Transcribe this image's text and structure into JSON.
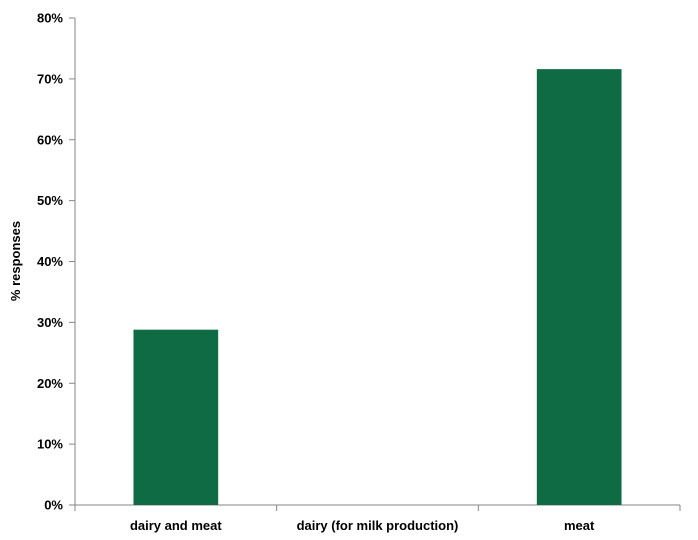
{
  "chart_data": {
    "type": "bar",
    "categories": [
      "dairy and meat",
      "dairy (for milk production)",
      "meat"
    ],
    "values": [
      28.8,
      0,
      71.6
    ],
    "ylabel": "% responses",
    "xlabel": "",
    "ylim": [
      0,
      80
    ],
    "yticks": [
      "0%",
      "10%",
      "20%",
      "30%",
      "40%",
      "50%",
      "60%",
      "70%",
      "80%"
    ],
    "grid": false,
    "legend": "none",
    "bar_color": "#0e6b44"
  }
}
